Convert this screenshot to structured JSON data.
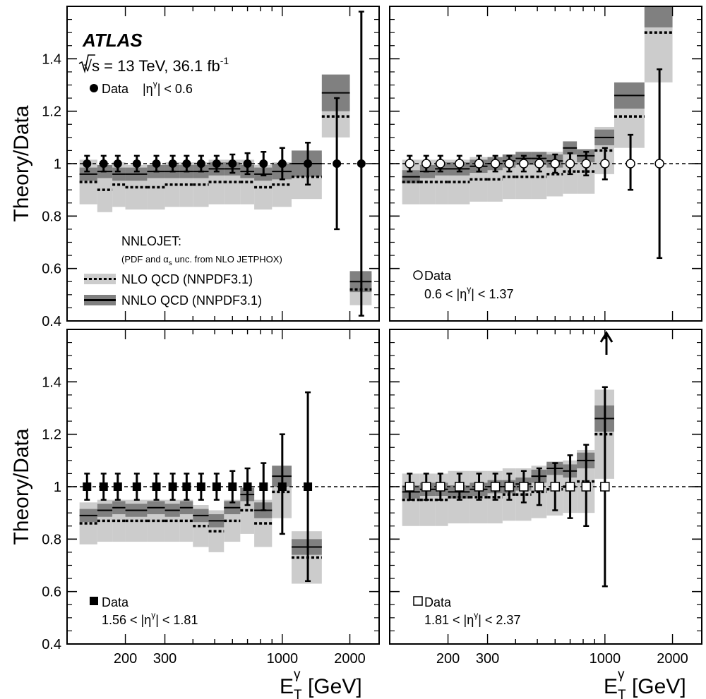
{
  "figure": {
    "experiment": "ATLAS",
    "energy_label": "√s = 13 TeV, 36.1 fb",
    "lumi_exp": "-1",
    "ylabel": "Theory/Data",
    "xlabel_main": "E",
    "xlabel_sup": "γ",
    "xlabel_sub": "T",
    "xlabel_unit": " [GeV]",
    "legend": {
      "generator": "NNLOJET:",
      "unc_prefix": "(PDF and α",
      "unc_sub": "s",
      "unc_suffix": " unc. from NLO JETPHOX)",
      "nlo": "NLO QCD (NNPDF3.1)",
      "nnlo": "NNLO QCD (NNPDF3.1)"
    },
    "colors": {
      "nlo_band": "#cccccc",
      "nnlo_band": "#808080",
      "data": "#000000"
    }
  },
  "chart_data": [
    {
      "type": "line",
      "panel": "top-left",
      "data_label": "Data",
      "eta_label": "|η",
      "eta_sup": "γ",
      "eta_tail": "| < 0.6",
      "marker": "filled-circle",
      "x_scale": "log",
      "x_ticks": [
        200,
        300,
        1000,
        2000
      ],
      "y_ticks": [
        0.4,
        0.6,
        0.8,
        1,
        1.2,
        1.4
      ],
      "ylim": [
        0.4,
        1.6
      ],
      "bin_edges": [
        125,
        150,
        175,
        200,
        250,
        300,
        350,
        400,
        470,
        550,
        650,
        750,
        900,
        1100,
        1500,
        2000,
        2500
      ],
      "data": {
        "x": [
          135,
          160,
          185,
          225,
          275,
          325,
          375,
          435,
          510,
          600,
          700,
          825,
          1000,
          1300,
          1750,
          2250
        ],
        "y": [
          1,
          1,
          1,
          1,
          1,
          1,
          1,
          1,
          1,
          1,
          1,
          1,
          1,
          1,
          1,
          1
        ],
        "err_up": [
          0.03,
          0.03,
          0.03,
          0.03,
          0.03,
          0.03,
          0.03,
          0.03,
          0.03,
          0.035,
          0.04,
          0.045,
          0.06,
          0.08,
          0.25,
          0.58
        ],
        "err_down": [
          0.03,
          0.03,
          0.03,
          0.03,
          0.03,
          0.03,
          0.03,
          0.03,
          0.03,
          0.035,
          0.04,
          0.045,
          0.06,
          0.08,
          0.25,
          0.58
        ]
      },
      "nnlo": {
        "central": [
          0.96,
          0.97,
          0.96,
          0.96,
          0.97,
          0.97,
          0.97,
          0.97,
          0.98,
          0.98,
          0.97,
          0.96,
          0.97,
          1.0,
          1.27,
          0.55
        ],
        "band_half": [
          0.025,
          0.025,
          0.025,
          0.025,
          0.025,
          0.025,
          0.025,
          0.025,
          0.025,
          0.025,
          0.025,
          0.025,
          0.03,
          0.05,
          0.07,
          0.04
        ]
      },
      "nlo": {
        "central": [
          0.93,
          0.9,
          0.92,
          0.91,
          0.91,
          0.92,
          0.92,
          0.92,
          0.93,
          0.93,
          0.93,
          0.91,
          0.92,
          0.95,
          1.18,
          0.52
        ],
        "band_half": [
          0.085,
          0.085,
          0.085,
          0.085,
          0.085,
          0.085,
          0.085,
          0.085,
          0.085,
          0.085,
          0.085,
          0.085,
          0.085,
          0.085,
          0.08,
          0.06
        ]
      }
    },
    {
      "type": "line",
      "panel": "top-right",
      "data_label": "Data",
      "eta_label": "0.6 < |η",
      "eta_sup": "γ",
      "eta_tail": "| < 1.37",
      "marker": "open-circle",
      "x_scale": "log",
      "x_ticks": [
        200,
        300,
        1000,
        2000
      ],
      "y_ticks": [
        0.4,
        0.6,
        0.8,
        1,
        1.2,
        1.4
      ],
      "ylim": [
        0.4,
        1.6
      ],
      "bin_edges": [
        125,
        150,
        175,
        200,
        250,
        300,
        350,
        400,
        470,
        550,
        650,
        750,
        900,
        1100,
        1500,
        2000
      ],
      "data": {
        "x": [
          135,
          160,
          185,
          225,
          275,
          325,
          375,
          435,
          510,
          600,
          700,
          825,
          1000,
          1300,
          1750
        ],
        "y": [
          1,
          1,
          1,
          1,
          1,
          1,
          1,
          1,
          1,
          1,
          1,
          1,
          1,
          1,
          1
        ],
        "err_up": [
          0.03,
          0.03,
          0.03,
          0.03,
          0.03,
          0.03,
          0.03,
          0.03,
          0.03,
          0.035,
          0.04,
          0.045,
          0.06,
          0.11,
          0.36
        ],
        "err_down": [
          0.03,
          0.03,
          0.03,
          0.03,
          0.03,
          0.03,
          0.03,
          0.03,
          0.03,
          0.035,
          0.04,
          0.045,
          0.06,
          0.1,
          0.36
        ]
      },
      "nnlo": {
        "central": [
          0.95,
          0.97,
          0.98,
          0.98,
          0.99,
          1.0,
          1.01,
          1.02,
          1.02,
          1.01,
          1.06,
          1.03,
          1.1,
          1.26,
          1.6
        ],
        "band_half": [
          0.025,
          0.025,
          0.025,
          0.025,
          0.025,
          0.025,
          0.025,
          0.025,
          0.025,
          0.025,
          0.025,
          0.025,
          0.03,
          0.05,
          0.08
        ]
      },
      "nlo": {
        "central": [
          0.93,
          0.93,
          0.93,
          0.93,
          0.94,
          0.94,
          0.95,
          0.95,
          0.95,
          0.96,
          0.97,
          0.97,
          1.05,
          1.18,
          1.5
        ],
        "band_half": [
          0.085,
          0.085,
          0.085,
          0.085,
          0.085,
          0.085,
          0.085,
          0.085,
          0.085,
          0.085,
          0.085,
          0.085,
          0.09,
          0.12,
          0.19
        ]
      }
    },
    {
      "type": "line",
      "panel": "bottom-left",
      "data_label": "Data",
      "eta_label": "1.56 < |η",
      "eta_sup": "γ",
      "eta_tail": "| < 1.81",
      "marker": "filled-square",
      "x_scale": "log",
      "x_ticks": [
        200,
        300,
        1000,
        2000
      ],
      "x_tick_labels": [
        "200",
        "300",
        "1000",
        "2000"
      ],
      "y_ticks": [
        0.4,
        0.6,
        0.8,
        1,
        1.2,
        1.4
      ],
      "ylim": [
        0.4,
        1.6
      ],
      "bin_edges": [
        125,
        150,
        175,
        200,
        250,
        300,
        350,
        400,
        470,
        550,
        650,
        750,
        900,
        1100,
        1500
      ],
      "data": {
        "x": [
          135,
          160,
          185,
          225,
          275,
          325,
          375,
          435,
          510,
          600,
          700,
          825,
          1000,
          1300
        ],
        "y": [
          1,
          1,
          1,
          1,
          1,
          1,
          1,
          1,
          1,
          1,
          1,
          1,
          1,
          1
        ],
        "err_up": [
          0.05,
          0.05,
          0.05,
          0.05,
          0.05,
          0.05,
          0.05,
          0.05,
          0.05,
          0.06,
          0.07,
          0.09,
          0.2,
          0.36
        ],
        "err_down": [
          0.05,
          0.05,
          0.05,
          0.05,
          0.05,
          0.05,
          0.05,
          0.05,
          0.05,
          0.06,
          0.07,
          0.09,
          0.18,
          0.36
        ]
      },
      "nnlo": {
        "central": [
          0.89,
          0.91,
          0.92,
          0.91,
          0.92,
          0.91,
          0.92,
          0.89,
          0.87,
          0.92,
          0.97,
          0.91,
          1.04,
          0.77
        ],
        "band_half": [
          0.025,
          0.025,
          0.025,
          0.025,
          0.025,
          0.025,
          0.025,
          0.025,
          0.025,
          0.025,
          0.025,
          0.03,
          0.04,
          0.03
        ]
      },
      "nlo": {
        "central": [
          0.86,
          0.87,
          0.87,
          0.87,
          0.87,
          0.87,
          0.87,
          0.85,
          0.83,
          0.87,
          0.91,
          0.86,
          0.98,
          0.73
        ],
        "band_half": [
          0.08,
          0.08,
          0.08,
          0.08,
          0.08,
          0.08,
          0.08,
          0.08,
          0.08,
          0.08,
          0.09,
          0.09,
          0.1,
          0.1
        ]
      }
    },
    {
      "type": "line",
      "panel": "bottom-right",
      "data_label": "Data",
      "eta_label": "1.81 < |η",
      "eta_sup": "γ",
      "eta_tail": "| < 2.37",
      "marker": "open-square",
      "x_scale": "log",
      "x_ticks": [
        200,
        300,
        1000,
        2000
      ],
      "x_tick_labels": [
        "200",
        "300",
        "1000",
        "2000"
      ],
      "y_ticks": [
        0.4,
        0.6,
        0.8,
        1,
        1.2,
        1.4
      ],
      "ylim": [
        0.4,
        1.6
      ],
      "annotation": "upward arrow above the 1000 GeV point",
      "bin_edges": [
        125,
        150,
        175,
        200,
        250,
        300,
        350,
        400,
        470,
        550,
        650,
        750,
        900,
        1100
      ],
      "data": {
        "x": [
          135,
          160,
          185,
          225,
          275,
          325,
          375,
          435,
          510,
          600,
          700,
          825,
          1000
        ],
        "y": [
          1,
          1,
          1,
          1,
          1,
          1,
          1,
          1,
          1,
          1,
          1,
          1,
          1
        ],
        "err_up": [
          0.05,
          0.05,
          0.05,
          0.05,
          0.05,
          0.05,
          0.05,
          0.06,
          0.07,
          0.09,
          0.12,
          0.16,
          0.38
        ],
        "err_down": [
          0.05,
          0.05,
          0.05,
          0.05,
          0.05,
          0.05,
          0.05,
          0.06,
          0.07,
          0.09,
          0.12,
          0.15,
          0.38
        ]
      },
      "nnlo": {
        "central": [
          0.98,
          0.99,
          0.99,
          0.98,
          0.99,
          1.0,
          1.0,
          1.01,
          1.04,
          1.07,
          1.06,
          1.1,
          1.26
        ],
        "band_half": [
          0.025,
          0.025,
          0.025,
          0.025,
          0.025,
          0.025,
          0.025,
          0.025,
          0.025,
          0.025,
          0.025,
          0.03,
          0.05
        ]
      },
      "nlo": {
        "central": [
          0.95,
          0.95,
          0.95,
          0.96,
          0.96,
          0.96,
          0.97,
          0.97,
          0.98,
          0.99,
          1.0,
          1.02,
          1.2
        ],
        "band_half": [
          0.1,
          0.1,
          0.1,
          0.1,
          0.1,
          0.1,
          0.1,
          0.1,
          0.1,
          0.1,
          0.1,
          0.12,
          0.17
        ]
      }
    }
  ]
}
